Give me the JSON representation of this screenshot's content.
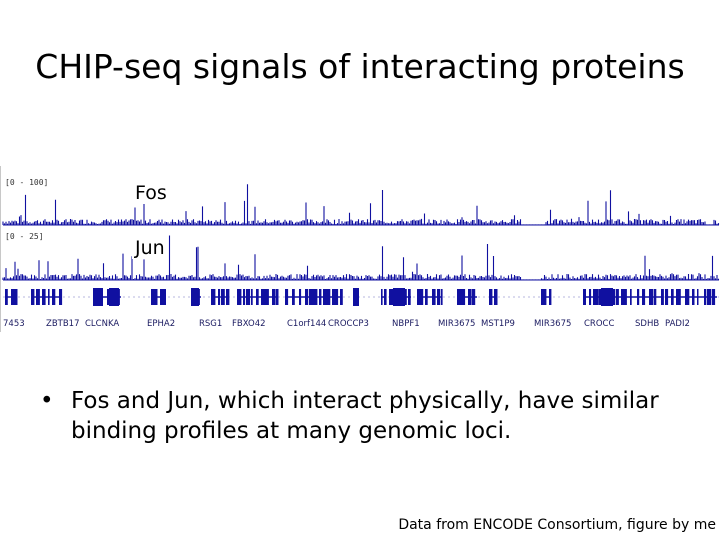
{
  "slide": {
    "title": "CHIP-seq signals of interacting proteins",
    "bullet_marker": "•",
    "bullet": "Fos and Jun, which interact physically, have similar binding profiles at many genomic loci.",
    "credit": "Data from ENCODE Consortium, figure by me"
  },
  "tracks": [
    {
      "label": "Fos",
      "range": "[0 - 100]",
      "color": "#1010a0"
    },
    {
      "label": "Jun",
      "range": "[0 - 25]",
      "color": "#1010a0"
    }
  ],
  "genes": [
    "7453",
    "ZBTB17",
    "CLCNKA",
    "EPHA2",
    "RSG1",
    "FBXO42",
    "C1orf144",
    "CROCCP3",
    "NBPF1",
    "MIR3675",
    "MST1P9",
    "MIR3675",
    "CROCC",
    "SDHB",
    "PADI2"
  ],
  "colors": {
    "signal": "#1010a0",
    "gene_track": "#1010a0",
    "background": "#ffffff"
  }
}
